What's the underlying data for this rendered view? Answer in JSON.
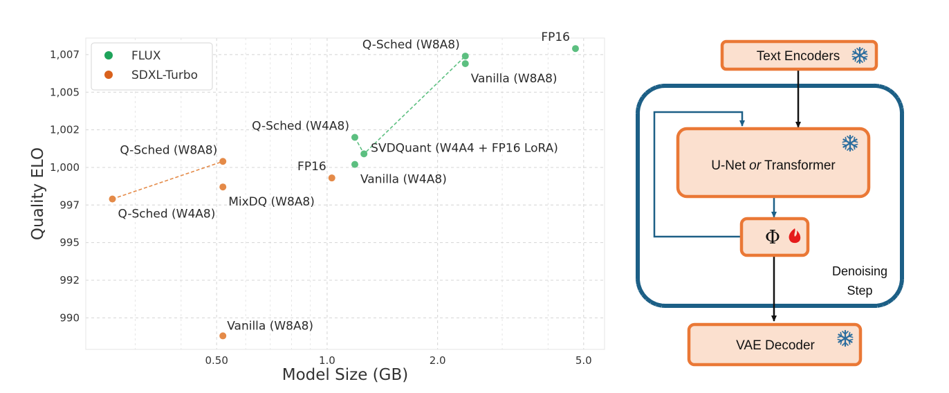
{
  "chart_data": {
    "type": "scatter",
    "xlabel": "Model Size (GB)",
    "ylabel": "Quality ELO",
    "xscale": "log",
    "xlim": [
      0.22,
      5.7
    ],
    "ylim": [
      987.9,
      1008.6
    ],
    "xticks": [
      0.5,
      1.0,
      2.0,
      5.0
    ],
    "xtick_labels": [
      "0.50",
      "1.0",
      "2.0",
      "5.0"
    ],
    "yticks": [
      990.0,
      992.5,
      995.0,
      997.5,
      1000.0,
      1002.5,
      1005.0,
      1007.5
    ],
    "ytick_labels": [
      "990",
      "992",
      "995",
      "997",
      "1,000",
      "1,002",
      "1,005",
      "1,007"
    ],
    "grid": true,
    "legend_position": "top-left",
    "series": [
      {
        "name": "FLUX",
        "marker_color": "#5cbf80",
        "legend_color": "#1ea35a",
        "frontier": [
          0,
          1,
          4
        ],
        "points": [
          {
            "x": 1.19,
            "y": 1002.0,
            "label": "Q-Sched (W4A8)",
            "pos": "above-left"
          },
          {
            "x": 1.26,
            "y": 1000.9,
            "label": "SVDQuant (W4A4 + FP16 LoRA)",
            "pos": "right"
          },
          {
            "x": 1.19,
            "y": 1000.2,
            "label": "Vanilla (W4A8)",
            "pos": "below-right"
          },
          {
            "x": 2.38,
            "y": 1006.9,
            "label": "Vanilla (W8A8)",
            "pos": "below-right"
          },
          {
            "x": 2.38,
            "y": 1007.4,
            "label": "Q-Sched (W8A8)",
            "pos": "above-left"
          },
          {
            "x": 4.75,
            "y": 1007.9,
            "label": "FP16",
            "pos": "above-left"
          }
        ]
      },
      {
        "name": "SDXL-Turbo",
        "marker_color": "#e48a48",
        "legend_color": "#d9611c",
        "frontier": [
          0,
          1
        ],
        "points": [
          {
            "x": 0.26,
            "y": 997.9,
            "label": "Q-Sched (W4A8)",
            "pos": "below-right"
          },
          {
            "x": 0.52,
            "y": 1000.4,
            "label": "Q-Sched (W8A8)",
            "pos": "above-left"
          },
          {
            "x": 0.52,
            "y": 998.7,
            "label": "MixDQ (W8A8)",
            "pos": "below-right"
          },
          {
            "x": 0.52,
            "y": 988.8,
            "label": "Vanilla (W8A8)",
            "pos": "above-right"
          },
          {
            "x": 1.03,
            "y": 999.3,
            "label": "FP16",
            "pos": "above-left"
          }
        ]
      }
    ]
  },
  "diagram": {
    "text_encoders_label": "Text Encoders",
    "unet_label_part1": "U-Net ",
    "unet_label_or": "or",
    "unet_label_part2": " Transformer",
    "phi_label": "Φ",
    "denoising_label_line1": "Denoising",
    "denoising_label_line2": "Step",
    "vae_label": "VAE Decoder",
    "box_fill": "#fbe0cf",
    "box_border": "#ea7836",
    "loop_color": "#1c5f86",
    "snow_color": "#2b6d9e",
    "flame_color": "#e51b1b"
  }
}
